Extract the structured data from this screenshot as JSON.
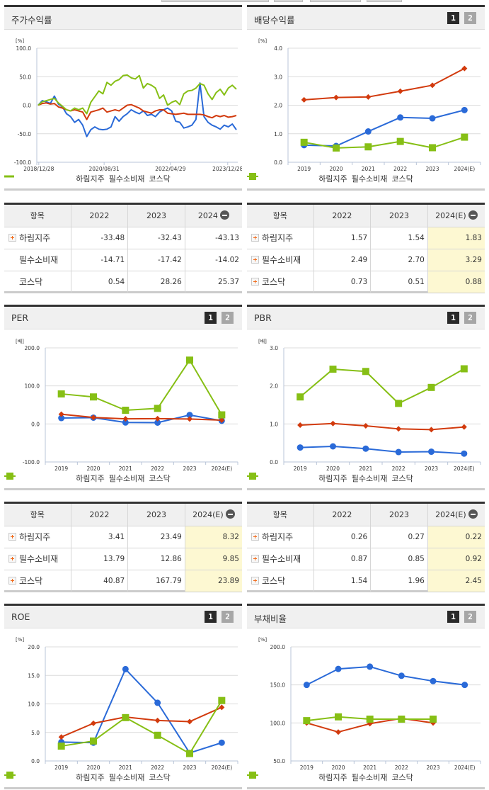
{
  "series_names": [
    "하림지주",
    "필수소비재",
    "코스닥"
  ],
  "colors": {
    "holding": "#2a6ad8",
    "staples": "#d23a0d",
    "kosdaq": "#86bf15",
    "estimate_bg": "#fdf8d2"
  },
  "pager": {
    "page1": "1",
    "page2": "2"
  },
  "panels": {
    "stock_return": {
      "title": "주가수익률",
      "unit": "[%]",
      "table": {
        "header": [
          "항목",
          "2022",
          "2023",
          "2024"
        ],
        "rows": [
          {
            "name": "하림지주",
            "values": [
              "-33.48",
              "-32.43",
              "-43.13"
            ]
          },
          {
            "name": "필수소비재",
            "values": [
              "-14.71",
              "-17.42",
              "-14.02"
            ]
          },
          {
            "name": "코스닥",
            "values": [
              "0.54",
              "28.26",
              "25.37"
            ]
          }
        ]
      }
    },
    "dividend_yield": {
      "title": "배당수익률",
      "unit": "[%]",
      "table": {
        "header": [
          "항목",
          "2022",
          "2023",
          "2024(E)"
        ],
        "rows": [
          {
            "name": "하림지주",
            "values": [
              "1.57",
              "1.54",
              "1.83"
            ]
          },
          {
            "name": "필수소비재",
            "values": [
              "2.49",
              "2.70",
              "3.29"
            ]
          },
          {
            "name": "코스닥",
            "values": [
              "0.73",
              "0.51",
              "0.88"
            ]
          }
        ]
      }
    },
    "per": {
      "title": "PER",
      "unit": "[배]",
      "table": {
        "header": [
          "항목",
          "2022",
          "2023",
          "2024(E)"
        ],
        "rows": [
          {
            "name": "하림지주",
            "values": [
              "3.41",
              "23.49",
              "8.32"
            ]
          },
          {
            "name": "필수소비재",
            "values": [
              "13.79",
              "12.86",
              "9.85"
            ]
          },
          {
            "name": "코스닥",
            "values": [
              "40.87",
              "167.79",
              "23.89"
            ]
          }
        ]
      }
    },
    "pbr": {
      "title": "PBR",
      "unit": "[배]",
      "table": {
        "header": [
          "항목",
          "2022",
          "2023",
          "2024(E)"
        ],
        "rows": [
          {
            "name": "하림지주",
            "values": [
              "0.26",
              "0.27",
              "0.22"
            ]
          },
          {
            "name": "필수소비재",
            "values": [
              "0.87",
              "0.85",
              "0.92"
            ]
          },
          {
            "name": "코스닥",
            "values": [
              "1.54",
              "1.96",
              "2.45"
            ]
          }
        ]
      }
    },
    "roe": {
      "title": "ROE",
      "unit": "[%]"
    },
    "debt_ratio": {
      "title": "부채비율",
      "unit": "[%]"
    }
  },
  "chart_data": [
    {
      "id": "stock_return",
      "type": "line",
      "title": "주가수익률",
      "ylabel": "[%]",
      "ylim": [
        -100,
        100
      ],
      "yticks": [
        "100.0",
        "50.0",
        "0.0",
        "-50.0",
        "-100.0"
      ],
      "xticks": [
        "2018/12/28",
        "2020/08/31",
        "2022/04/29",
        "2023/12/28"
      ],
      "legend_position": "bottom",
      "grid": true,
      "series": [
        {
          "name": "하림지주",
          "values": [
            0,
            8,
            6,
            3,
            16,
            2,
            -3,
            -15,
            -20,
            -30,
            -25,
            -35,
            -55,
            -43,
            -38,
            -42,
            -43,
            -42,
            -38,
            -20,
            -28,
            -20,
            -15,
            -8,
            -12,
            -15,
            -10,
            -18,
            -16,
            -20,
            -12,
            -8,
            -5,
            -10,
            -28,
            -30,
            -40,
            -38,
            -35,
            -25,
            39,
            -20,
            -30,
            -35,
            -38,
            -42,
            -35,
            -38,
            -33,
            -43
          ]
        },
        {
          "name": "필수소비재",
          "values": [
            0,
            3,
            4,
            2,
            3,
            -3,
            -5,
            -8,
            -10,
            -8,
            -10,
            -12,
            -25,
            -12,
            -10,
            -8,
            -5,
            -12,
            -10,
            -8,
            -10,
            -5,
            0,
            1,
            -2,
            -5,
            -10,
            -12,
            -14,
            -10,
            -8,
            -8,
            -14,
            -15,
            -16,
            -15,
            -14,
            -16,
            -16,
            -16,
            -16,
            -17,
            -20,
            -22,
            -18,
            -20,
            -18,
            -21,
            -20,
            -18
          ]
        },
        {
          "name": "코스닥",
          "values": [
            0,
            6,
            8,
            10,
            12,
            4,
            -2,
            -8,
            -10,
            -5,
            -8,
            -5,
            -15,
            5,
            15,
            25,
            20,
            40,
            35,
            42,
            45,
            52,
            53,
            48,
            46,
            52,
            30,
            38,
            35,
            30,
            12,
            18,
            0,
            5,
            8,
            1,
            20,
            25,
            26,
            30,
            38,
            35,
            20,
            10,
            22,
            28,
            18,
            30,
            35,
            28
          ]
        }
      ],
      "table_values": {
        "categories": [
          "2022",
          "2023",
          "2024"
        ],
        "series": [
          {
            "name": "하림지주",
            "values": [
              -33.48,
              -32.43,
              -43.13
            ]
          },
          {
            "name": "필수소비재",
            "values": [
              -14.71,
              -17.42,
              -14.02
            ]
          },
          {
            "name": "코스닥",
            "values": [
              0.54,
              28.26,
              25.37
            ]
          }
        ]
      }
    },
    {
      "id": "dividend_yield",
      "type": "line",
      "title": "배당수익률",
      "ylabel": "[%]",
      "ylim": [
        0,
        4
      ],
      "yticks": [
        "4.0",
        "3.0",
        "2.0",
        "1.0",
        "0.0"
      ],
      "categories": [
        "2019",
        "2020",
        "2021",
        "2022",
        "2023",
        "2024(E)"
      ],
      "legend_position": "bottom",
      "grid": true,
      "series": [
        {
          "name": "하림지주",
          "values": [
            0.6,
            0.57,
            1.08,
            1.57,
            1.54,
            1.83
          ]
        },
        {
          "name": "필수소비재",
          "values": [
            2.19,
            2.27,
            2.29,
            2.49,
            2.7,
            3.29
          ]
        },
        {
          "name": "코스닥",
          "values": [
            0.7,
            0.5,
            0.54,
            0.73,
            0.51,
            0.88
          ]
        }
      ]
    },
    {
      "id": "per",
      "type": "line",
      "title": "PER",
      "ylabel": "[배]",
      "ylim": [
        -100,
        200
      ],
      "yticks": [
        "200.0",
        "100.0",
        "0.0",
        "-100.0"
      ],
      "categories": [
        "2019",
        "2020",
        "2021",
        "2022",
        "2023",
        "2024(E)"
      ],
      "legend_position": "bottom",
      "grid": true,
      "series": [
        {
          "name": "하림지주",
          "values": [
            15.5,
            16.5,
            3.8,
            3.41,
            23.49,
            8.32
          ]
        },
        {
          "name": "필수소비재",
          "values": [
            25.5,
            17.0,
            13.5,
            13.79,
            12.86,
            9.85
          ]
        },
        {
          "name": "코스닥",
          "values": [
            79.0,
            71.0,
            36.0,
            40.87,
            167.79,
            23.89
          ]
        }
      ]
    },
    {
      "id": "pbr",
      "type": "line",
      "title": "PBR",
      "ylabel": "[배]",
      "ylim": [
        0,
        3
      ],
      "yticks": [
        "3.0",
        "2.0",
        "1.0",
        "0.0"
      ],
      "categories": [
        "2019",
        "2020",
        "2021",
        "2022",
        "2023",
        "2024(E)"
      ],
      "legend_position": "bottom",
      "grid": true,
      "series": [
        {
          "name": "하림지주",
          "values": [
            0.38,
            0.41,
            0.35,
            0.26,
            0.27,
            0.22
          ]
        },
        {
          "name": "필수소비재",
          "values": [
            0.97,
            1.01,
            0.95,
            0.87,
            0.85,
            0.92
          ]
        },
        {
          "name": "코스닥",
          "values": [
            1.71,
            2.44,
            2.38,
            1.54,
            1.96,
            2.45
          ]
        }
      ]
    },
    {
      "id": "roe",
      "type": "line",
      "title": "ROE",
      "ylabel": "[%]",
      "ylim": [
        0,
        20
      ],
      "yticks": [
        "20.0",
        "15.0",
        "10.0",
        "5.0",
        "0.0"
      ],
      "categories": [
        "2019",
        "2020",
        "2021",
        "2022",
        "2023",
        "2024(E)"
      ],
      "legend_position": "bottom",
      "grid": true,
      "series": [
        {
          "name": "하림지주",
          "values": [
            3.3,
            3.2,
            16.1,
            10.2,
            1.4,
            3.2
          ]
        },
        {
          "name": "필수소비재",
          "values": [
            4.2,
            6.6,
            7.7,
            7.1,
            6.9,
            9.4
          ]
        },
        {
          "name": "코스닥",
          "values": [
            2.6,
            3.5,
            7.6,
            4.5,
            1.3,
            10.6
          ]
        }
      ]
    },
    {
      "id": "debt_ratio",
      "type": "line",
      "title": "부채비율",
      "ylabel": "[%]",
      "ylim": [
        50,
        200
      ],
      "yticks": [
        "200.0",
        "150.0",
        "100.0",
        "50.0"
      ],
      "categories": [
        "2019",
        "2020",
        "2021",
        "2022",
        "2023",
        "2024(E)"
      ],
      "legend_position": "bottom",
      "grid": true,
      "series": [
        {
          "name": "하림지주",
          "values": [
            150,
            171,
            174,
            162,
            155,
            150
          ]
        },
        {
          "name": "필수소비재",
          "values": [
            100,
            88,
            99,
            106,
            100,
            null
          ]
        },
        {
          "name": "코스닥",
          "values": [
            103,
            108,
            105,
            105,
            105,
            null
          ]
        }
      ]
    }
  ]
}
